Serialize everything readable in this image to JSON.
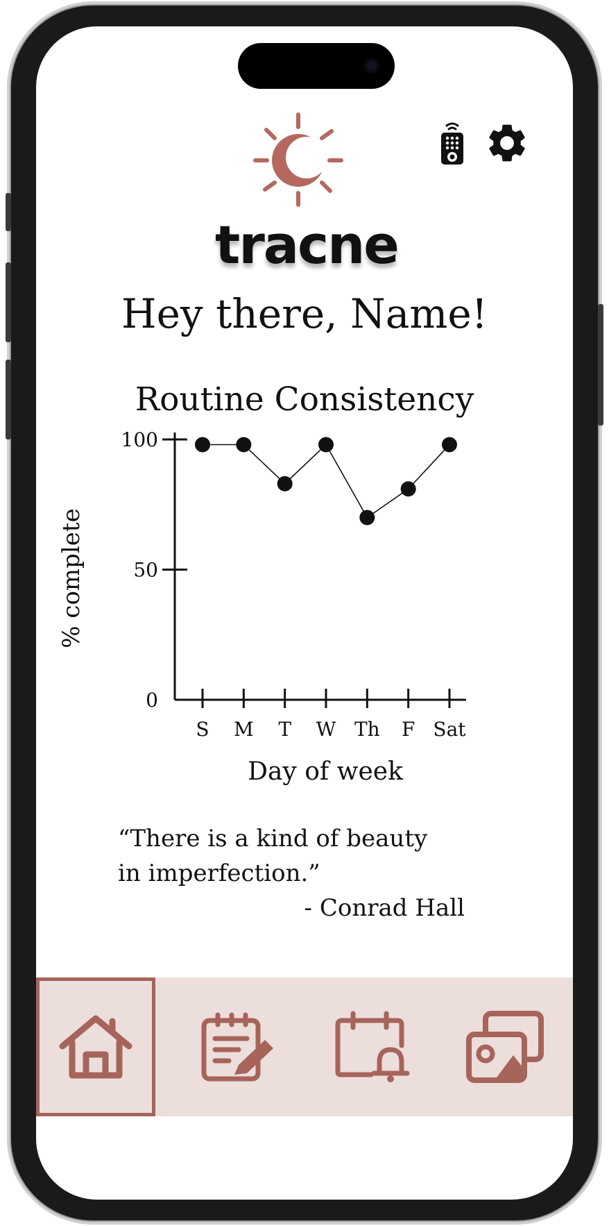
{
  "app": {
    "name": "tracne",
    "accent_color": "#b5695e"
  },
  "header": {
    "icons": [
      "remote-icon",
      "gear-icon"
    ]
  },
  "greeting": "Hey there, Name!",
  "chart_data": {
    "type": "line",
    "title": "Routine Consistency",
    "xlabel": "Day of week",
    "ylabel": "% complete",
    "categories": [
      "S",
      "M",
      "T",
      "W",
      "Th",
      "F",
      "Sat"
    ],
    "values": [
      98,
      98,
      83,
      98,
      70,
      81,
      98
    ],
    "ylim": [
      0,
      100
    ],
    "yticks": [
      0,
      50,
      100
    ],
    "grid": false,
    "legend": "none"
  },
  "quote": {
    "text_line1": "“There is a kind of beauty",
    "text_line2": "in imperfection.”",
    "author": "- Conrad Hall"
  },
  "nav": {
    "items": [
      {
        "icon": "home-icon",
        "active": true
      },
      {
        "icon": "journal-icon",
        "active": false
      },
      {
        "icon": "calendar-alarm-icon",
        "active": false
      },
      {
        "icon": "gallery-icon",
        "active": false
      }
    ],
    "background_color": "#ecdedb",
    "icon_color": "#a6645a"
  }
}
